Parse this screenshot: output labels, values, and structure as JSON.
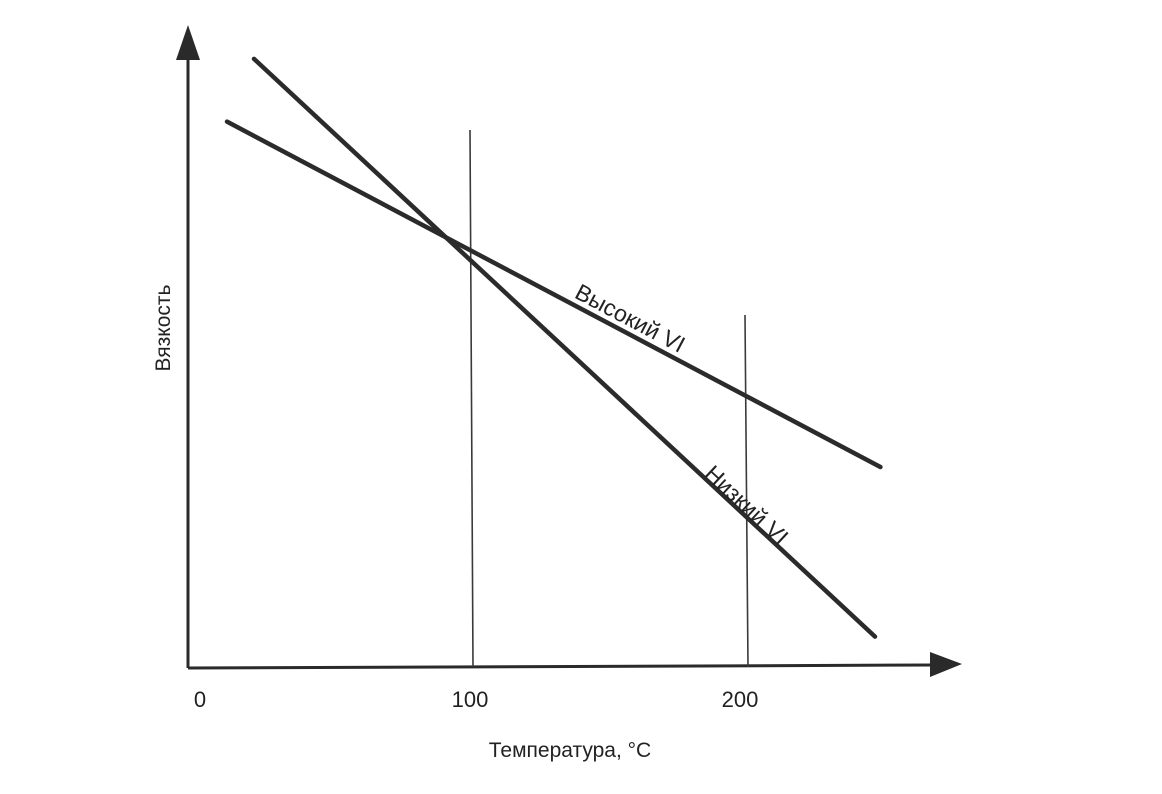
{
  "chart_data": {
    "type": "line",
    "xlabel": "Температура, °C",
    "ylabel": "Вязкость",
    "xlim": [
      0,
      260
    ],
    "ylim": [
      0,
      100
    ],
    "x_ticks": [
      "0",
      "100",
      "200"
    ],
    "x_tick_values": [
      0,
      100,
      200
    ],
    "reference_lines_x": [
      100,
      200
    ],
    "series": [
      {
        "name": "Высокий VI",
        "x": [
          10,
          252
        ],
        "y": [
          87,
          32
        ]
      },
      {
        "name": "Низкий VI",
        "x": [
          20,
          250
        ],
        "y": [
          97,
          5
        ]
      }
    ],
    "grid": false,
    "legend": "none"
  }
}
